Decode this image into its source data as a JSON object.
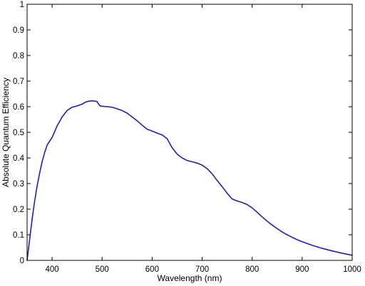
{
  "chart_data": {
    "type": "line",
    "title": "",
    "xlabel": "Wavelength (nm)",
    "ylabel": "Absolute Quantum Efficiency",
    "xlim": [
      350,
      1000
    ],
    "ylim": [
      0,
      1
    ],
    "xticks": [
      400,
      500,
      600,
      700,
      800,
      900,
      1000
    ],
    "yticks": [
      0,
      0.1,
      0.2,
      0.3,
      0.4,
      0.5,
      0.6,
      0.7,
      0.8,
      0.9,
      1
    ],
    "ytick_labels": [
      "0",
      "0.1",
      "0.2",
      "0.3",
      "0.4",
      "0.5",
      "0.6",
      "0.7",
      "0.8",
      "0.9",
      "1"
    ],
    "grid": false,
    "legend": "none",
    "colors": {
      "line": "#1f1fbf",
      "axes": "#000000",
      "background": "#ffffff"
    },
    "series": [
      {
        "x": [
          350,
          355,
          360,
          365,
          370,
          375,
          380,
          385,
          390,
          395,
          400,
          410,
          420,
          430,
          440,
          450,
          460,
          465,
          470,
          475,
          480,
          485,
          490,
          493,
          496,
          500,
          510,
          520,
          530,
          540,
          550,
          560,
          570,
          580,
          590,
          600,
          610,
          620,
          630,
          640,
          650,
          660,
          670,
          680,
          690,
          700,
          710,
          720,
          730,
          740,
          750,
          760,
          770,
          780,
          790,
          800,
          810,
          820,
          830,
          840,
          850,
          860,
          870,
          880,
          890,
          900,
          920,
          940,
          960,
          980,
          1000
        ],
        "y": [
          0.0,
          0.08,
          0.16,
          0.23,
          0.29,
          0.34,
          0.385,
          0.42,
          0.45,
          0.465,
          0.48,
          0.525,
          0.56,
          0.585,
          0.598,
          0.603,
          0.61,
          0.616,
          0.62,
          0.622,
          0.623,
          0.622,
          0.62,
          0.61,
          0.603,
          0.602,
          0.6,
          0.598,
          0.592,
          0.585,
          0.575,
          0.56,
          0.545,
          0.528,
          0.512,
          0.505,
          0.497,
          0.49,
          0.475,
          0.44,
          0.415,
          0.4,
          0.39,
          0.385,
          0.38,
          0.372,
          0.358,
          0.338,
          0.312,
          0.288,
          0.262,
          0.24,
          0.232,
          0.226,
          0.218,
          0.205,
          0.188,
          0.17,
          0.153,
          0.138,
          0.124,
          0.111,
          0.1,
          0.09,
          0.081,
          0.073,
          0.059,
          0.047,
          0.037,
          0.028,
          0.02
        ]
      }
    ]
  }
}
